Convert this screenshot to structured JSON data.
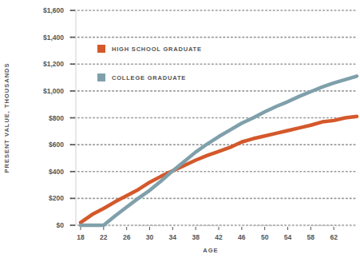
{
  "chart_data": {
    "type": "line",
    "x_label": "AGE",
    "y_label": "PRESENT VALUE, THOUSANDS",
    "x": [
      18,
      20,
      22,
      24,
      26,
      28,
      30,
      32,
      34,
      36,
      38,
      40,
      42,
      44,
      46,
      48,
      50,
      52,
      54,
      56,
      58,
      60,
      62,
      64,
      66
    ],
    "series": [
      {
        "name": "HIGH SCHOOL GRADUATE",
        "color": "#d4582b",
        "values": [
          20,
          80,
          125,
          175,
          220,
          265,
          320,
          365,
          405,
          445,
          485,
          520,
          550,
          580,
          620,
          645,
          665,
          685,
          705,
          725,
          745,
          770,
          780,
          800,
          810
        ]
      },
      {
        "name": "COLLEGE GRADUATE",
        "color": "#7fa0ab",
        "values": [
          0,
          0,
          0,
          70,
          135,
          200,
          260,
          330,
          405,
          475,
          545,
          605,
          660,
          710,
          760,
          800,
          845,
          885,
          920,
          960,
          995,
          1030,
          1060,
          1085,
          1110
        ]
      }
    ],
    "xlim": [
      18,
      66
    ],
    "xticks": [
      18,
      22,
      26,
      30,
      34,
      38,
      42,
      46,
      50,
      54,
      58,
      62
    ],
    "ylim": [
      0,
      1600
    ],
    "yticks": [
      {
        "value": 0,
        "label": "$0"
      },
      {
        "value": 200,
        "label": "$200"
      },
      {
        "value": 400,
        "label": "$400"
      },
      {
        "value": 600,
        "label": "$600"
      },
      {
        "value": 800,
        "label": "$800"
      },
      {
        "value": 1000,
        "label": "$1,000"
      },
      {
        "value": 1200,
        "label": "$1,200"
      },
      {
        "value": 1400,
        "label": "$1,400"
      },
      {
        "value": 1600,
        "label": "$1,600"
      }
    ],
    "grid": true,
    "legend": "upper left"
  }
}
